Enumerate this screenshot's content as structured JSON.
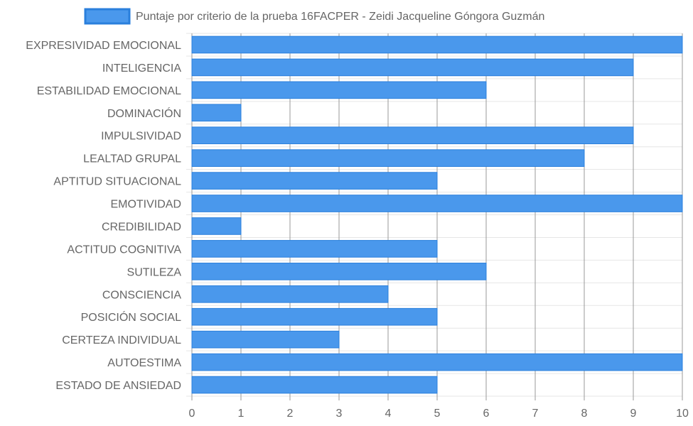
{
  "chart_data": {
    "type": "bar",
    "orientation": "horizontal",
    "categories": [
      "EXPRESIVIDAD EMOCIONAL",
      "INTELIGENCIA",
      "ESTABILIDAD EMOCIONAL",
      "DOMINACIÓN",
      "IMPULSIVIDAD",
      "LEALTAD GRUPAL",
      "APTITUD SITUACIONAL",
      "EMOTIVIDAD",
      "CREDIBILIDAD",
      "ACTITUD COGNITIVA",
      "SUTILEZA",
      "CONSCIENCIA",
      "POSICIÓN SOCIAL",
      "CERTEZA INDIVIDUAL",
      "AUTOESTIMA",
      "ESTADO DE ANSIEDAD"
    ],
    "series": [
      {
        "name": "Puntaje por criterio de la prueba 16FACPER - Zeidi Jacqueline Góngora Guzmán",
        "values": [
          10,
          9,
          6,
          1,
          9,
          8,
          5,
          10,
          1,
          5,
          6,
          4,
          5,
          3,
          10,
          5
        ],
        "color": "#4a98ec",
        "border_color": "#2a7fdc"
      }
    ],
    "xlim": [
      0,
      10
    ],
    "x_ticks": [
      "0",
      "1",
      "2",
      "3",
      "4",
      "5",
      "6",
      "7",
      "8",
      "9",
      "10"
    ],
    "grid": true,
    "legend": "top-center",
    "grid_color_x": "#999999",
    "grid_color_y": "#e6e6e6"
  }
}
